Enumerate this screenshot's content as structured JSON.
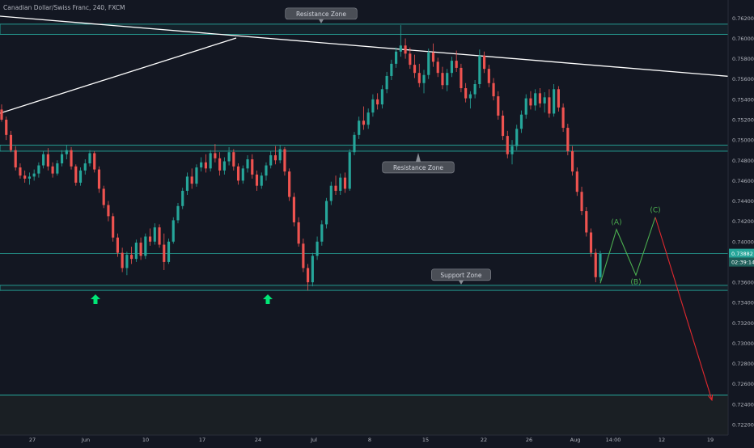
{
  "chart_data": {
    "type": "candlestick",
    "title": "Canadian Dollar/Swiss Franc, 240, FXCM",
    "symbol": "CADCHF",
    "timeframe": "240",
    "broker": "FXCM",
    "x_tick_labels": [
      "27",
      "Jun",
      "10",
      "17",
      "24",
      "Jul",
      "8",
      "15",
      "22",
      "26",
      "Aug",
      "14:00",
      "12",
      "19"
    ],
    "y_tick_labels": [
      "0.76200",
      "0.76000",
      "0.75800",
      "0.75600",
      "0.75400",
      "0.75200",
      "0.75000",
      "0.74800",
      "0.74600",
      "0.74400",
      "0.74200",
      "0.74000",
      "0.73600",
      "0.73400",
      "0.73200",
      "0.73000",
      "0.72800",
      "0.72600",
      "0.72400",
      "0.72200"
    ],
    "ylim": [
      0.7216,
      0.7633
    ],
    "price_label": {
      "price": "0.73882",
      "countdown": "02:39:14"
    },
    "colors": {
      "up": "#26a69a",
      "down": "#ef5350",
      "zone": "#26a69a",
      "trend": "#ffffff",
      "projection": "#4caf50",
      "target": "#e0282e",
      "arrow": "#00e676"
    },
    "zones": [
      {
        "label": "Resistance Zone",
        "upper": 0.7614,
        "lower": 0.7604
      },
      {
        "label": "Resistance Zone",
        "upper": 0.7495,
        "lower": 0.7489
      },
      {
        "label": "Support Zone",
        "upper": 0.7357,
        "lower": 0.7352
      }
    ],
    "lower_line": 0.7249,
    "price_line": 0.73882,
    "projection": [
      {
        "label": "",
        "price": 0.7359
      },
      {
        "label": "(A)",
        "price": 0.7412
      },
      {
        "label": "(B)",
        "price": 0.7367
      },
      {
        "label": "(C)",
        "price": 0.7424
      },
      {
        "label": "",
        "price": 0.7244
      }
    ],
    "support_arrows": 2,
    "candles": [
      [
        0.753,
        0.7535,
        0.7518,
        0.752
      ],
      [
        0.752,
        0.7523,
        0.75,
        0.7505
      ],
      [
        0.7505,
        0.7509,
        0.7488,
        0.749
      ],
      [
        0.749,
        0.7494,
        0.747,
        0.7473
      ],
      [
        0.7473,
        0.7477,
        0.7462,
        0.7465
      ],
      [
        0.7465,
        0.747,
        0.7458,
        0.7462
      ],
      [
        0.7462,
        0.7468,
        0.7456,
        0.7464
      ],
      [
        0.7464,
        0.7471,
        0.746,
        0.7467
      ],
      [
        0.7467,
        0.7478,
        0.7463,
        0.7475
      ],
      [
        0.7475,
        0.7489,
        0.7472,
        0.7486
      ],
      [
        0.7486,
        0.7492,
        0.747,
        0.7474
      ],
      [
        0.7474,
        0.7478,
        0.7463,
        0.7467
      ],
      [
        0.7467,
        0.748,
        0.7465,
        0.7477
      ],
      [
        0.7477,
        0.749,
        0.7474,
        0.7486
      ],
      [
        0.7486,
        0.7495,
        0.7481,
        0.749
      ],
      [
        0.749,
        0.7493,
        0.7471,
        0.7474
      ],
      [
        0.7474,
        0.7476,
        0.7455,
        0.7458
      ],
      [
        0.7458,
        0.7473,
        0.7455,
        0.747
      ],
      [
        0.747,
        0.7481,
        0.7466,
        0.7477
      ],
      [
        0.7477,
        0.749,
        0.7474,
        0.7487
      ],
      [
        0.7487,
        0.7489,
        0.7468,
        0.7471
      ],
      [
        0.7471,
        0.7474,
        0.7448,
        0.7452
      ],
      [
        0.7452,
        0.7455,
        0.7433,
        0.7436
      ],
      [
        0.7436,
        0.744,
        0.742,
        0.7425
      ],
      [
        0.7425,
        0.7428,
        0.74,
        0.7404
      ],
      [
        0.7404,
        0.7408,
        0.7385,
        0.7389
      ],
      [
        0.7389,
        0.7394,
        0.737,
        0.7374
      ],
      [
        0.7374,
        0.739,
        0.7367,
        0.7387
      ],
      [
        0.7387,
        0.7395,
        0.7378,
        0.7383
      ],
      [
        0.7383,
        0.7402,
        0.738,
        0.7399
      ],
      [
        0.7399,
        0.7404,
        0.7382,
        0.7386
      ],
      [
        0.7386,
        0.7408,
        0.7383,
        0.7405
      ],
      [
        0.7405,
        0.7413,
        0.7396,
        0.74
      ],
      [
        0.74,
        0.7418,
        0.7397,
        0.7414
      ],
      [
        0.7414,
        0.7417,
        0.7394,
        0.7397
      ],
      [
        0.7397,
        0.7408,
        0.7372,
        0.738
      ],
      [
        0.738,
        0.7403,
        0.7378,
        0.74
      ],
      [
        0.74,
        0.7424,
        0.7398,
        0.7421
      ],
      [
        0.7421,
        0.7438,
        0.7418,
        0.7435
      ],
      [
        0.7435,
        0.7453,
        0.7432,
        0.745
      ],
      [
        0.745,
        0.7468,
        0.7446,
        0.7464
      ],
      [
        0.7464,
        0.7472,
        0.7452,
        0.7457
      ],
      [
        0.7457,
        0.7476,
        0.7454,
        0.7473
      ],
      [
        0.7473,
        0.7483,
        0.7469,
        0.7478
      ],
      [
        0.7478,
        0.7486,
        0.7468,
        0.7472
      ],
      [
        0.7472,
        0.749,
        0.7469,
        0.7487
      ],
      [
        0.7487,
        0.7496,
        0.7478,
        0.7482
      ],
      [
        0.7482,
        0.7488,
        0.7465,
        0.747
      ],
      [
        0.747,
        0.7483,
        0.7466,
        0.7479
      ],
      [
        0.7479,
        0.7493,
        0.7475,
        0.7488
      ],
      [
        0.7488,
        0.7491,
        0.747,
        0.7474
      ],
      [
        0.7474,
        0.7477,
        0.7456,
        0.746
      ],
      [
        0.746,
        0.7475,
        0.7457,
        0.7472
      ],
      [
        0.7472,
        0.7485,
        0.7468,
        0.7481
      ],
      [
        0.7481,
        0.7486,
        0.7462,
        0.7466
      ],
      [
        0.7466,
        0.747,
        0.745,
        0.7455
      ],
      [
        0.7455,
        0.7468,
        0.7452,
        0.7465
      ],
      [
        0.7465,
        0.7478,
        0.746,
        0.7475
      ],
      [
        0.7475,
        0.7489,
        0.7472,
        0.7485
      ],
      [
        0.7485,
        0.7494,
        0.7476,
        0.748
      ],
      [
        0.748,
        0.7495,
        0.7477,
        0.7491
      ],
      [
        0.7491,
        0.7493,
        0.7465,
        0.7469
      ],
      [
        0.7469,
        0.7472,
        0.744,
        0.7444
      ],
      [
        0.7444,
        0.7448,
        0.7415,
        0.7419
      ],
      [
        0.7419,
        0.7424,
        0.7395,
        0.7398
      ],
      [
        0.7398,
        0.7403,
        0.737,
        0.7374
      ],
      [
        0.7374,
        0.7378,
        0.7352,
        0.736
      ],
      [
        0.736,
        0.7389,
        0.7356,
        0.7386
      ],
      [
        0.7386,
        0.7405,
        0.7382,
        0.74
      ],
      [
        0.74,
        0.7421,
        0.7396,
        0.7417
      ],
      [
        0.7417,
        0.7443,
        0.7413,
        0.744
      ],
      [
        0.744,
        0.7459,
        0.7436,
        0.7455
      ],
      [
        0.7455,
        0.7465,
        0.7446,
        0.745
      ],
      [
        0.745,
        0.7467,
        0.7446,
        0.7463
      ],
      [
        0.7463,
        0.7468,
        0.7448,
        0.7452
      ],
      [
        0.7452,
        0.7491,
        0.745,
        0.7488
      ],
      [
        0.7488,
        0.7508,
        0.7485,
        0.7505
      ],
      [
        0.7505,
        0.7523,
        0.7501,
        0.7519
      ],
      [
        0.7519,
        0.7533,
        0.751,
        0.7515
      ],
      [
        0.7515,
        0.7531,
        0.7511,
        0.7527
      ],
      [
        0.7527,
        0.7545,
        0.7523,
        0.754
      ],
      [
        0.754,
        0.7546,
        0.753,
        0.7535
      ],
      [
        0.7535,
        0.7554,
        0.7531,
        0.755
      ],
      [
        0.755,
        0.7567,
        0.7546,
        0.7563
      ],
      [
        0.7563,
        0.7579,
        0.7559,
        0.7575
      ],
      [
        0.7575,
        0.7591,
        0.7571,
        0.7587
      ],
      [
        0.7587,
        0.7613,
        0.7582,
        0.7593
      ],
      [
        0.7593,
        0.76,
        0.758,
        0.7585
      ],
      [
        0.7585,
        0.7591,
        0.757,
        0.7574
      ],
      [
        0.7574,
        0.7584,
        0.7561,
        0.7566
      ],
      [
        0.7566,
        0.7575,
        0.7552,
        0.7556
      ],
      [
        0.7556,
        0.7569,
        0.7546,
        0.7564
      ],
      [
        0.7564,
        0.759,
        0.756,
        0.7586
      ],
      [
        0.7586,
        0.7595,
        0.7572,
        0.7577
      ],
      [
        0.7577,
        0.7581,
        0.7562,
        0.7566
      ],
      [
        0.7566,
        0.7572,
        0.755,
        0.7554
      ],
      [
        0.7554,
        0.757,
        0.7548,
        0.7566
      ],
      [
        0.7566,
        0.7582,
        0.7562,
        0.7578
      ],
      [
        0.7578,
        0.7588,
        0.7567,
        0.7571
      ],
      [
        0.7571,
        0.7575,
        0.7547,
        0.7551
      ],
      [
        0.7551,
        0.7556,
        0.7537,
        0.7541
      ],
      [
        0.7541,
        0.7548,
        0.7531,
        0.7545
      ],
      [
        0.7545,
        0.7559,
        0.7541,
        0.7555
      ],
      [
        0.7555,
        0.7589,
        0.7551,
        0.7583
      ],
      [
        0.7583,
        0.7587,
        0.7566,
        0.757
      ],
      [
        0.757,
        0.7574,
        0.7552,
        0.7556
      ],
      [
        0.7556,
        0.7561,
        0.7539,
        0.7543
      ],
      [
        0.7543,
        0.7548,
        0.752,
        0.7524
      ],
      [
        0.7524,
        0.7529,
        0.75,
        0.7504
      ],
      [
        0.7504,
        0.7509,
        0.7482,
        0.7486
      ],
      [
        0.7486,
        0.75,
        0.7476,
        0.7494
      ],
      [
        0.7494,
        0.7515,
        0.749,
        0.7511
      ],
      [
        0.7511,
        0.7529,
        0.7507,
        0.7525
      ],
      [
        0.7525,
        0.7545,
        0.7521,
        0.7541
      ],
      [
        0.7541,
        0.7548,
        0.753,
        0.7534
      ],
      [
        0.7534,
        0.755,
        0.7529,
        0.7546
      ],
      [
        0.7546,
        0.7551,
        0.7532,
        0.7536
      ],
      [
        0.7536,
        0.7547,
        0.7527,
        0.7542
      ],
      [
        0.7542,
        0.755,
        0.7522,
        0.7526
      ],
      [
        0.7526,
        0.7555,
        0.7523,
        0.755
      ],
      [
        0.755,
        0.7553,
        0.7528,
        0.7532
      ],
      [
        0.7532,
        0.7536,
        0.7508,
        0.7512
      ],
      [
        0.7512,
        0.7516,
        0.7485,
        0.7489
      ],
      [
        0.7489,
        0.7494,
        0.7465,
        0.7469
      ],
      [
        0.7469,
        0.7473,
        0.7445,
        0.7449
      ],
      [
        0.7449,
        0.7454,
        0.7426,
        0.743
      ],
      [
        0.743,
        0.7434,
        0.7405,
        0.7409
      ],
      [
        0.7409,
        0.7413,
        0.7385,
        0.7389
      ],
      [
        0.7389,
        0.7393,
        0.736,
        0.7365
      ],
      [
        0.7365,
        0.7391,
        0.7361,
        0.7388
      ]
    ]
  }
}
